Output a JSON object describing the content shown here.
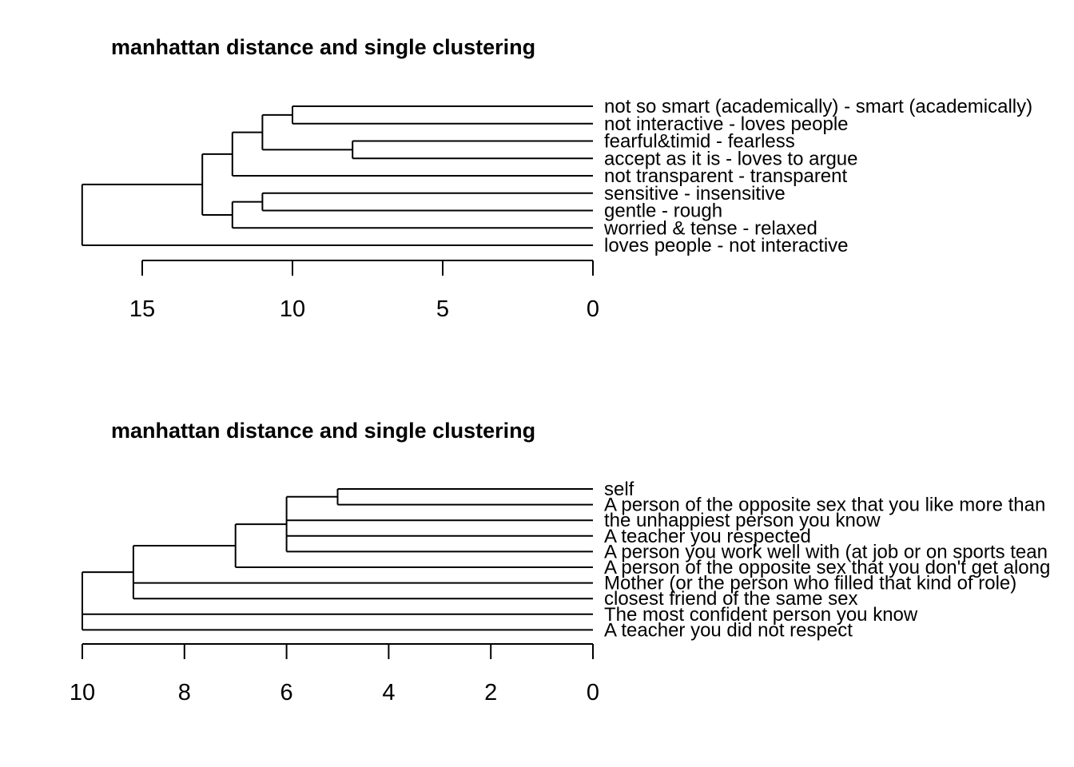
{
  "chart_data": [
    {
      "type": "dendrogram",
      "title": "manhattan distance and single clustering",
      "distance": "manhattan",
      "linkage": "single",
      "xlim": [
        17.1,
        0
      ],
      "ticks": [
        15,
        10,
        5,
        0
      ],
      "tick_labels": [
        "15",
        "10",
        "5",
        "0"
      ],
      "leaves": [
        "not so smart (academically) - smart (academically)",
        "not interactive - loves people",
        "fearful&timid - fearless",
        "accept as it is - loves to argue",
        "not transparent - transparent",
        "sensitive - insensitive",
        "gentle - rough",
        "worried & tense - relaxed",
        "loves people - not interactive"
      ],
      "merges": [
        {
          "a": "L3",
          "b": "L4",
          "height": 8
        },
        {
          "a": "L1",
          "b": "L2",
          "height": 10
        },
        {
          "a": "M2",
          "b": "M1",
          "height": 11
        },
        {
          "a": "L6",
          "b": "L7",
          "height": 11
        },
        {
          "a": "M3",
          "b": "L5",
          "height": 12
        },
        {
          "a": "M4",
          "b": "L8",
          "height": 12
        },
        {
          "a": "M5",
          "b": "M6",
          "height": 13
        },
        {
          "a": "M7",
          "b": "L9",
          "height": 17
        }
      ]
    },
    {
      "type": "dendrogram",
      "title": "manhattan distance and single clustering",
      "distance": "manhattan",
      "linkage": "single",
      "xlim": [
        10,
        0
      ],
      "ticks": [
        10,
        8,
        6,
        4,
        2,
        0
      ],
      "tick_labels": [
        "10",
        "8",
        "6",
        "4",
        "2",
        "0"
      ],
      "leaves": [
        "self",
        "A person of the opposite sex that you like more than",
        "the unhappiest person you know",
        "A teacher you respected",
        "A person you work well with (at job or on sports tean",
        "A person of the opposite sex that you don't get along",
        "Mother (or the person who filled that kind of role)",
        "closest friend of the same sex",
        "The most confident person you know",
        "A teacher you did not respect"
      ],
      "merges": [
        {
          "a": "L1",
          "b": "L2",
          "height": 5
        },
        {
          "a": "M1",
          "b": "L3",
          "b2": "L4",
          "b3": "L5",
          "height": 6
        },
        {
          "a": "M2",
          "b": "L6",
          "height": 7
        },
        {
          "a": "M3",
          "b": "L7",
          "b2": "L8",
          "height": 9
        },
        {
          "a": "M4",
          "b": "L9",
          "b2": "L10",
          "height": 10
        }
      ]
    }
  ]
}
